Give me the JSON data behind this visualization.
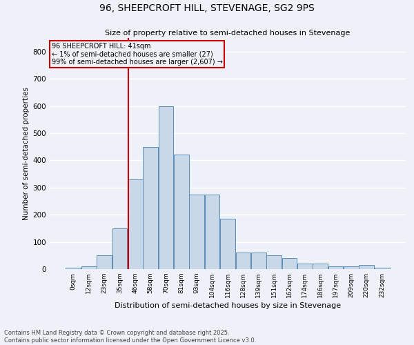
{
  "title": "96, SHEEPCROFT HILL, STEVENAGE, SG2 9PS",
  "subtitle": "Size of property relative to semi-detached houses in Stevenage",
  "xlabel": "Distribution of semi-detached houses by size in Stevenage",
  "ylabel": "Number of semi-detached properties",
  "footer": "Contains HM Land Registry data © Crown copyright and database right 2025.\nContains public sector information licensed under the Open Government Licence v3.0.",
  "bin_labels": [
    "0sqm",
    "12sqm",
    "23sqm",
    "35sqm",
    "46sqm",
    "58sqm",
    "70sqm",
    "81sqm",
    "93sqm",
    "104sqm",
    "116sqm",
    "128sqm",
    "139sqm",
    "151sqm",
    "162sqm",
    "174sqm",
    "186sqm",
    "197sqm",
    "209sqm",
    "220sqm",
    "232sqm"
  ],
  "bar_values": [
    5,
    10,
    50,
    150,
    330,
    450,
    600,
    420,
    275,
    275,
    185,
    60,
    60,
    50,
    40,
    20,
    20,
    10,
    10,
    15,
    5
  ],
  "bar_color": "#c8d8e8",
  "bar_edge_color": "#5b8db8",
  "property_line_label": "96 SHEEPCROFT HILL: 41sqm",
  "annotation_line1": "← 1% of semi-detached houses are smaller (27)",
  "annotation_line2": "99% of semi-detached houses are larger (2,607) →",
  "vline_color": "#cc0000",
  "annotation_box_edge_color": "#cc0000",
  "ylim": [
    0,
    850
  ],
  "yticks": [
    0,
    100,
    200,
    300,
    400,
    500,
    600,
    700,
    800
  ],
  "background_color": "#eef2f8",
  "grid_color": "#ffffff",
  "vline_index": 3.55
}
